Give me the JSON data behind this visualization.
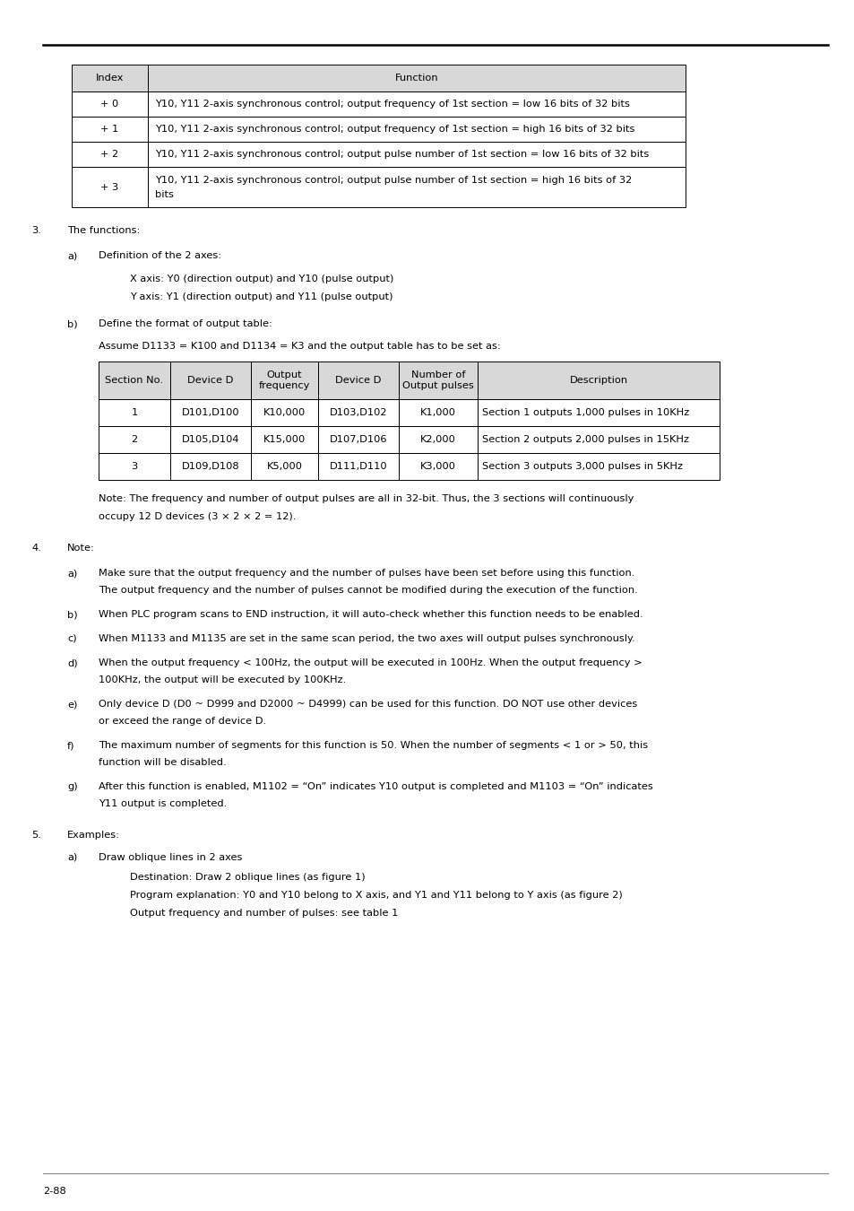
{
  "page_number": "2-88",
  "bg_color": "#ffffff",
  "text_color": "#000000",
  "font_size": 8.2,
  "table1": {
    "header": [
      "Index",
      "Function"
    ],
    "rows": [
      [
        "+ 0",
        "Y10, Y11 2-axis synchronous control; output frequency of 1st section = low 16 bits of 32 bits"
      ],
      [
        "+ 1",
        "Y10, Y11 2-axis synchronous control; output frequency of 1st section = high 16 bits of 32 bits"
      ],
      [
        "+ 2",
        "Y10, Y11 2-axis synchronous control; output pulse number of 1st section = low 16 bits of 32 bits"
      ],
      [
        "+ 3",
        "Y10, Y11 2-axis synchronous control; output pulse number of 1st section = high 16 bits of 32\nbits"
      ]
    ]
  },
  "table2": {
    "header": [
      "Section No.",
      "Device D",
      "Output\nfrequency",
      "Device D",
      "Number of\nOutput pulses",
      "Description"
    ],
    "rows": [
      [
        "1",
        "D101,D100",
        "K10,000",
        "D103,D102",
        "K1,000",
        "Section 1 outputs 1,000 pulses in 10KHz"
      ],
      [
        "2",
        "D105,D104",
        "K15,000",
        "D107,D106",
        "K2,000",
        "Section 2 outputs 2,000 pulses in 15KHz"
      ],
      [
        "3",
        "D109,D108",
        "K5,000",
        "D111,D110",
        "K3,000",
        "Section 3 outputs 3,000 pulses in 5KHz"
      ]
    ]
  },
  "section4_items": [
    {
      "label": "a)",
      "lines": [
        "Make sure that the output frequency and the number of pulses have been set before using this function.",
        "The output frequency and the number of pulses cannot be modified during the execution of the function."
      ]
    },
    {
      "label": "b)",
      "lines": [
        "When PLC program scans to END instruction, it will auto-check whether this function needs to be enabled."
      ]
    },
    {
      "label": "c)",
      "lines": [
        "When M1133 and M1135 are set in the same scan period, the two axes will output pulses synchronously."
      ]
    },
    {
      "label": "d)",
      "lines": [
        "When the output frequency < 100Hz, the output will be executed in 100Hz. When the output frequency >",
        "100KHz, the output will be executed by 100KHz."
      ]
    },
    {
      "label": "e)",
      "lines": [
        "Only device D (D0 ~ D999 and D2000 ~ D4999) can be used for this function. DO NOT use other devices",
        "or exceed the range of device D."
      ]
    },
    {
      "label": "f)",
      "lines": [
        "The maximum number of segments for this function is 50. When the number of segments < 1 or > 50, this",
        "function will be disabled."
      ]
    },
    {
      "label": "g)",
      "lines": [
        "After this function is enabled, M1102 = “On” indicates Y10 output is completed and M1103 = “On” indicates",
        "Y11 output is completed."
      ]
    }
  ]
}
